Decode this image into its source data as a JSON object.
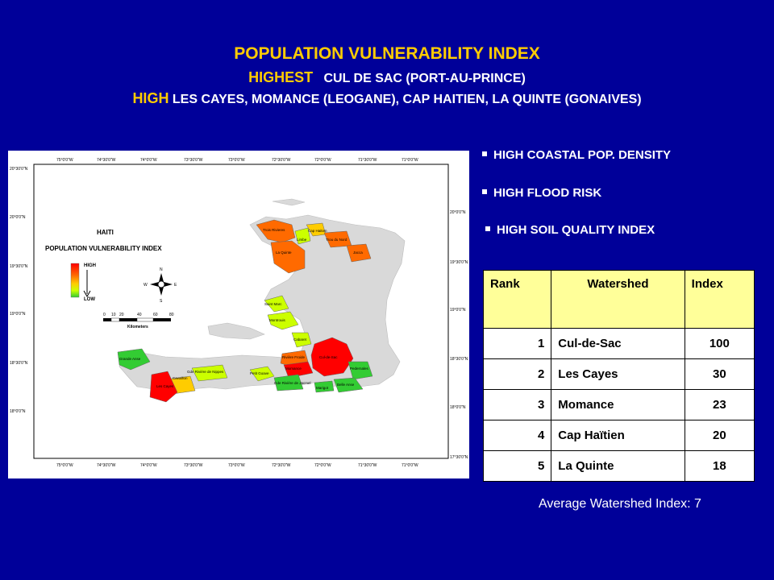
{
  "header": {
    "title": "POPULATION VULNERABILITY INDEX",
    "highest_label": "HIGHEST",
    "highest_text": "CUL DE SAC (PORT-AU-PRINCE)",
    "high_label": "HIGH",
    "high_text": "LES CAYES, MOMANCE (LEOGANE), CAP HAITIEN, LA QUINTE (GONAIVES)"
  },
  "bullets": [
    "HIGH COASTAL POP. DENSITY",
    "HIGH FLOOD RISK",
    "HIGH SOIL QUALITY INDEX"
  ],
  "map": {
    "country": "HAITI",
    "title": "POPULATION VULNERABILITY INDEX",
    "legend_high": "HIGH",
    "legend_low": "LOW",
    "scale_labels": [
      "0",
      "10",
      "20",
      "40",
      "60",
      "80"
    ],
    "scale_unit": "Kilometers",
    "compass": {
      "n": "N",
      "s": "S",
      "e": "E",
      "w": "W"
    },
    "lon_labels": [
      "75°0'0\"W",
      "74°30'0\"W",
      "74°0'0\"W",
      "73°30'0\"W",
      "73°0'0\"W",
      "72°30'0\"W",
      "72°0'0\"W",
      "71°30'0\"W",
      "71°0'0\"W"
    ],
    "lat_labels_left": [
      "20°30'0\"N",
      "20°0'0\"N",
      "19°30'0\"N",
      "19°0'0\"N",
      "18°30'0\"N",
      "18°0'0\"N"
    ],
    "lat_labels_right": [
      "20°0'0\"N",
      "19°30'0\"N",
      "19°0'0\"N",
      "18°30'0\"N",
      "18°0'0\"N",
      "17°30'0\"N"
    ],
    "watersheds": {
      "trois_rivieres": "Trois Rivieres",
      "cap_haitien": "Cap Haitien",
      "limbe": "Limbe",
      "trou_du_nord": "Trou du Nord",
      "la_quinte": "La Quinte",
      "jacca": "Jacca",
      "saint_marc": "Saint Marc",
      "montrouis": "Montrouis",
      "cabaret": "Cabaret",
      "cul_de_sac": "Cul-de-Sac",
      "riviere_froide": "Rivière Froide",
      "momance": "Momance",
      "grande_anse": "Grande Anse",
      "cavaillon": "Cavaillon",
      "les_cayes": "Les Cayes",
      "gde_riviere_nippes": "Gde Rivière de Nippes",
      "petit_goave": "Petit Goave",
      "gde_riviere_jacmel": "Gde Rivière de Jacmel",
      "marigot": "Marigot",
      "belle_anse": "Belle Anse",
      "pedernales": "Pedernales"
    },
    "colors": {
      "high": "#ff0000",
      "mid_high": "#ff6a00",
      "mid": "#ffcc00",
      "mid_low": "#ccff00",
      "low": "#33cc33",
      "land": "#d9d9d9"
    }
  },
  "table": {
    "headers": [
      "Rank",
      "Watershed",
      "Index"
    ],
    "rows": [
      {
        "rank": "1",
        "watershed": "Cul-de-Sac",
        "index": "100"
      },
      {
        "rank": "2",
        "watershed": "Les Cayes",
        "index": "30"
      },
      {
        "rank": "3",
        "watershed": "Momance",
        "index": "23"
      },
      {
        "rank": "4",
        "watershed": "Cap Haïtien",
        "index": "20"
      },
      {
        "rank": "5",
        "watershed": "La Quinte",
        "index": "18"
      }
    ]
  },
  "footer": {
    "average": "Average Watershed Index: 7"
  }
}
